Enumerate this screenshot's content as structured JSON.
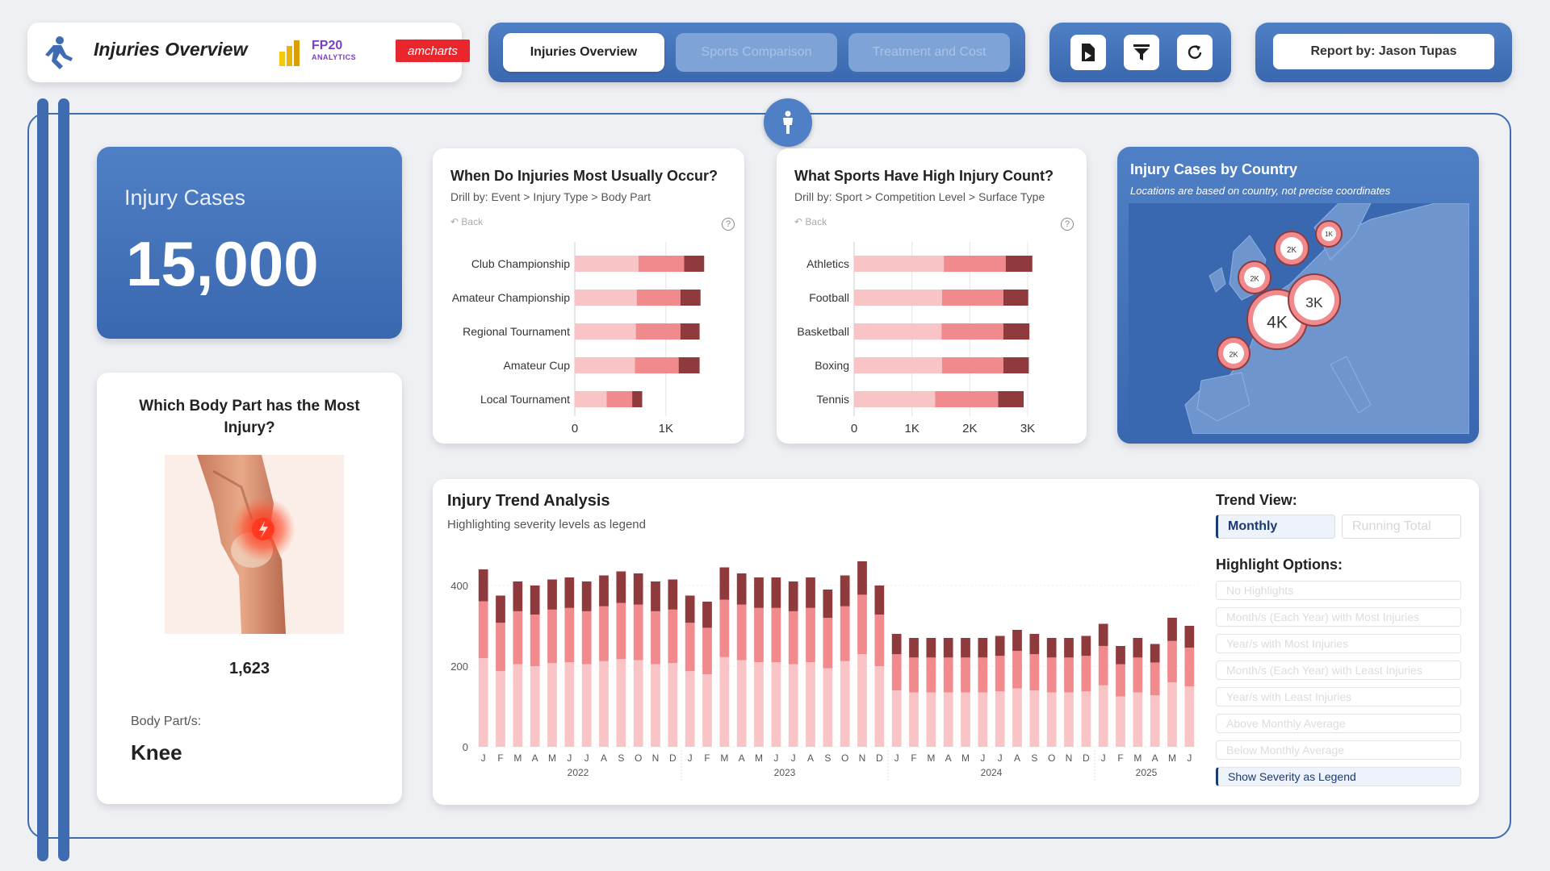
{
  "header": {
    "title": "Injuries Overview",
    "fp20_line1": "FP20",
    "fp20_line2": "ANALYTICS",
    "amcharts": "amcharts",
    "report_by": "Report by: Jason Tupas"
  },
  "nav": {
    "tabs": [
      {
        "label": "Injuries Overview",
        "active": true
      },
      {
        "label": "Sports Comparison",
        "active": false
      },
      {
        "label": "Treatment and Cost",
        "active": false
      }
    ]
  },
  "tools": {
    "icons": [
      "export-report-icon",
      "filter-icon",
      "refresh-icon"
    ]
  },
  "kpi": {
    "label": "Injury Cases",
    "value": "15,000"
  },
  "body_part": {
    "title": "Which Body Part has the Most Injury?",
    "count": "1,623",
    "label": "Body Part/s:",
    "value": "Knee"
  },
  "events_chart": {
    "title": "When Do Injuries Most Usually Occur?",
    "subtitle": "Drill by: Event > Injury Type > Body Part",
    "back": "Back",
    "help": "?"
  },
  "sports_chart": {
    "title": "What Sports Have High Injury Count?",
    "subtitle": "Drill by: Sport > Competition Level > Surface Type",
    "back": "Back",
    "help": "?"
  },
  "map": {
    "title": "Injury Cases by Country",
    "subtitle": "Locations are based on country, not precise coordinates",
    "bubbles": [
      "4K",
      "3K",
      "2K",
      "2K",
      "2K",
      "1K"
    ]
  },
  "trend": {
    "title": "Injury Trend Analysis",
    "subtitle": "Highlighting severity levels as legend",
    "trend_view_label": "Trend View:",
    "trend_view_options": [
      {
        "label": "Monthly",
        "active": true
      },
      {
        "label": "Running Total",
        "active": false
      }
    ],
    "highlight_label": "Highlight Options:",
    "highlight_options": [
      {
        "label": "No Highlights",
        "active": false
      },
      {
        "label": "Month/s (Each Year) with Most Injuries",
        "active": false
      },
      {
        "label": "Year/s with Most Injuries",
        "active": false
      },
      {
        "label": "Month/s (Each Year) with Least Injuries",
        "active": false
      },
      {
        "label": "Year/s with Least Injuries",
        "active": false
      },
      {
        "label": "Above Monthly Average",
        "active": false
      },
      {
        "label": "Below Monthly Average",
        "active": false
      },
      {
        "label": "Show Severity as Legend",
        "active": true
      }
    ]
  },
  "colors": {
    "light": "#f9c4c6",
    "medium": "#f08a8d",
    "dark": "#8f3a3d",
    "accent": "#3f6cb1"
  },
  "chart_data": [
    {
      "type": "bar",
      "orientation": "horizontal",
      "stacked": true,
      "categories": [
        "Club Championship",
        "Amateur Championship",
        "Regional Tournament",
        "Amateur Cup",
        "Local Tournament"
      ],
      "series": [
        {
          "values": [
            700,
            680,
            670,
            660,
            350
          ]
        },
        {
          "values": [
            500,
            480,
            490,
            480,
            280
          ]
        },
        {
          "values": [
            220,
            220,
            210,
            230,
            110
          ]
        }
      ],
      "xticks": [
        "0",
        "1K"
      ],
      "xlim": [
        0,
        1400
      ]
    },
    {
      "type": "bar",
      "orientation": "horizontal",
      "stacked": true,
      "categories": [
        "Athletics",
        "Football",
        "Basketball",
        "Boxing",
        "Tennis"
      ],
      "series": [
        {
          "values": [
            1550,
            1520,
            1510,
            1520,
            1400
          ]
        },
        {
          "values": [
            1070,
            1060,
            1070,
            1060,
            1090
          ]
        },
        {
          "values": [
            460,
            430,
            450,
            440,
            440
          ]
        }
      ],
      "xticks": [
        "0",
        "1K",
        "2K",
        "3K"
      ],
      "xlim": [
        0,
        3000
      ]
    },
    {
      "type": "bar",
      "stacked": true,
      "x": [
        "J",
        "F",
        "M",
        "A",
        "M",
        "J",
        "J",
        "A",
        "S",
        "O",
        "N",
        "D",
        "J",
        "F",
        "M",
        "A",
        "M",
        "J",
        "J",
        "A",
        "S",
        "O",
        "N",
        "D",
        "J",
        "F",
        "M",
        "A",
        "M",
        "J",
        "J",
        "A",
        "S",
        "O",
        "N",
        "D",
        "J",
        "F",
        "M",
        "A",
        "M",
        "J"
      ],
      "year_labels": [
        "2022",
        "2023",
        "2024",
        "2025"
      ],
      "yticks": [
        "0",
        "200",
        "400"
      ],
      "ylim": [
        0,
        460
      ],
      "totals": [
        440,
        375,
        410,
        400,
        415,
        420,
        410,
        425,
        435,
        430,
        410,
        415,
        375,
        360,
        445,
        430,
        420,
        420,
        410,
        420,
        390,
        425,
        460,
        400,
        280,
        270,
        270,
        270,
        270,
        270,
        275,
        290,
        280,
        270,
        270,
        275,
        305,
        250,
        270,
        255,
        320,
        300
      ]
    }
  ]
}
